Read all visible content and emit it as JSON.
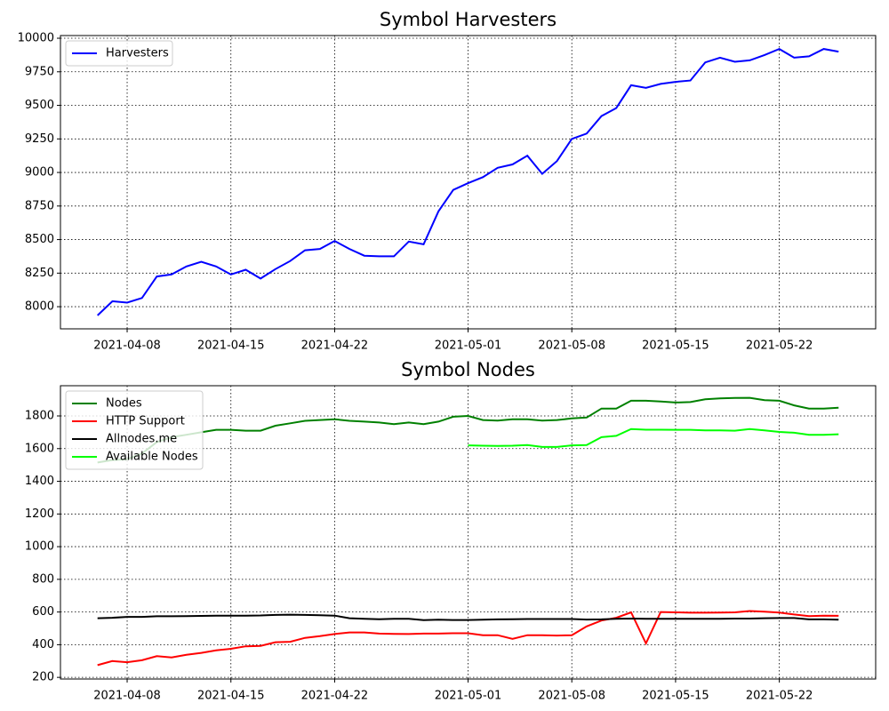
{
  "chart_data": [
    {
      "type": "line",
      "title": "Symbol Harvesters",
      "x": [
        "2021-04-06",
        "2021-04-07",
        "2021-04-08",
        "2021-04-09",
        "2021-04-10",
        "2021-04-11",
        "2021-04-12",
        "2021-04-13",
        "2021-04-14",
        "2021-04-15",
        "2021-04-16",
        "2021-04-17",
        "2021-04-18",
        "2021-04-19",
        "2021-04-20",
        "2021-04-21",
        "2021-04-22",
        "2021-04-23",
        "2021-04-24",
        "2021-04-25",
        "2021-04-26",
        "2021-04-27",
        "2021-04-28",
        "2021-04-29",
        "2021-04-30",
        "2021-05-01",
        "2021-05-02",
        "2021-05-03",
        "2021-05-04",
        "2021-05-05",
        "2021-05-06",
        "2021-05-07",
        "2021-05-08",
        "2021-05-09",
        "2021-05-10",
        "2021-05-11",
        "2021-05-12",
        "2021-05-13",
        "2021-05-14",
        "2021-05-15",
        "2021-05-16",
        "2021-05-17",
        "2021-05-18",
        "2021-05-19",
        "2021-05-20",
        "2021-05-21",
        "2021-05-22",
        "2021-05-23",
        "2021-05-24",
        "2021-05-25",
        "2021-05-26"
      ],
      "series": [
        {
          "name": "Harvesters",
          "color": "#0000ff",
          "values": [
            7935,
            8040,
            8030,
            8065,
            8225,
            8240,
            8300,
            8335,
            8300,
            8240,
            8275,
            8210,
            8280,
            8340,
            8420,
            8430,
            8490,
            8430,
            8380,
            8375,
            8375,
            8485,
            8465,
            8710,
            8870,
            8920,
            8965,
            9035,
            9060,
            9125,
            8990,
            9085,
            9250,
            9290,
            9420,
            9480,
            9650,
            9630,
            9660,
            9675,
            9685,
            9820,
            9855,
            9825,
            9835,
            9875,
            9920,
            9855,
            9865,
            9920,
            9900
          ]
        }
      ],
      "xlim": [
        "2021-04-03T12:00",
        "2021-05-28T12:00"
      ],
      "xticks": [
        "2021-04-08",
        "2021-04-15",
        "2021-04-22",
        "2021-05-01",
        "2021-05-08",
        "2021-05-15",
        "2021-05-22"
      ],
      "ylim": [
        7835,
        10020
      ],
      "yticks": [
        8000,
        8250,
        8500,
        8750,
        9000,
        9250,
        9500,
        9750,
        10000
      ],
      "grid": true,
      "legend": "upper-left"
    },
    {
      "type": "line",
      "title": "Symbol Nodes",
      "x": [
        "2021-04-06",
        "2021-04-07",
        "2021-04-08",
        "2021-04-09",
        "2021-04-10",
        "2021-04-11",
        "2021-04-12",
        "2021-04-13",
        "2021-04-14",
        "2021-04-15",
        "2021-04-16",
        "2021-04-17",
        "2021-04-18",
        "2021-04-19",
        "2021-04-20",
        "2021-04-21",
        "2021-04-22",
        "2021-04-23",
        "2021-04-24",
        "2021-04-25",
        "2021-04-26",
        "2021-04-27",
        "2021-04-28",
        "2021-04-29",
        "2021-04-30",
        "2021-05-01",
        "2021-05-02",
        "2021-05-03",
        "2021-05-04",
        "2021-05-05",
        "2021-05-06",
        "2021-05-07",
        "2021-05-08",
        "2021-05-09",
        "2021-05-10",
        "2021-05-11",
        "2021-05-12",
        "2021-05-13",
        "2021-05-14",
        "2021-05-15",
        "2021-05-16",
        "2021-05-17",
        "2021-05-18",
        "2021-05-19",
        "2021-05-20",
        "2021-05-21",
        "2021-05-22",
        "2021-05-23",
        "2021-05-24",
        "2021-05-25",
        "2021-05-26"
      ],
      "series": [
        {
          "name": "Nodes",
          "color": "#008000",
          "values": [
            1515,
            1530,
            1535,
            1570,
            1640,
            1670,
            1685,
            1700,
            1715,
            1715,
            1710,
            1710,
            1740,
            1755,
            1770,
            1775,
            1780,
            1770,
            1765,
            1760,
            1750,
            1760,
            1750,
            1765,
            1795,
            1800,
            1775,
            1772,
            1780,
            1780,
            1772,
            1775,
            1785,
            1790,
            1845,
            1845,
            1893,
            1893,
            1888,
            1882,
            1885,
            1902,
            1908,
            1910,
            1911,
            1897,
            1893,
            1865,
            1845,
            1845,
            1850
          ]
        },
        {
          "name": "HTTP Support",
          "color": "#ff0000",
          "values": [
            275,
            300,
            293,
            305,
            330,
            322,
            338,
            350,
            365,
            375,
            390,
            393,
            415,
            418,
            442,
            452,
            465,
            475,
            475,
            468,
            466,
            465,
            468,
            468,
            470,
            470,
            458,
            458,
            436,
            458,
            458,
            456,
            458,
            512,
            548,
            565,
            598,
            408,
            600,
            598,
            596,
            596,
            597,
            598,
            606,
            602,
            597,
            585,
            575,
            578,
            577
          ]
        },
        {
          "name": "Allnodes.me",
          "color": "#000000",
          "values": [
            562,
            565,
            570,
            570,
            574,
            574,
            575,
            576,
            578,
            578,
            578,
            579,
            582,
            584,
            582,
            580,
            578,
            562,
            558,
            556,
            558,
            558,
            550,
            553,
            551,
            551,
            553,
            555,
            556,
            557,
            557,
            557,
            557,
            554,
            555,
            558,
            560,
            558,
            558,
            558,
            558,
            558,
            558,
            560,
            560,
            562,
            563,
            563,
            555,
            555,
            553
          ]
        },
        {
          "name": "Available Nodes",
          "color": "#00ff00",
          "values": [
            null,
            null,
            null,
            null,
            null,
            null,
            null,
            null,
            null,
            null,
            null,
            null,
            null,
            null,
            null,
            null,
            null,
            null,
            null,
            null,
            null,
            null,
            null,
            null,
            null,
            1620,
            1618,
            1616,
            1618,
            1622,
            1610,
            1610,
            1620,
            1622,
            1670,
            1678,
            1720,
            1716,
            1716,
            1715,
            1715,
            1712,
            1712,
            1710,
            1720,
            1712,
            1702,
            1697,
            1685,
            1685,
            1688
          ]
        }
      ],
      "xlim": [
        "2021-04-03T12:00",
        "2021-05-28T12:00"
      ],
      "xticks": [
        "2021-04-08",
        "2021-04-15",
        "2021-04-22",
        "2021-05-01",
        "2021-05-08",
        "2021-05-15",
        "2021-05-22"
      ],
      "ylim": [
        190,
        1985
      ],
      "yticks": [
        200,
        400,
        600,
        800,
        1000,
        1200,
        1400,
        1600,
        1800
      ],
      "grid": true,
      "legend": "upper-left"
    }
  ]
}
